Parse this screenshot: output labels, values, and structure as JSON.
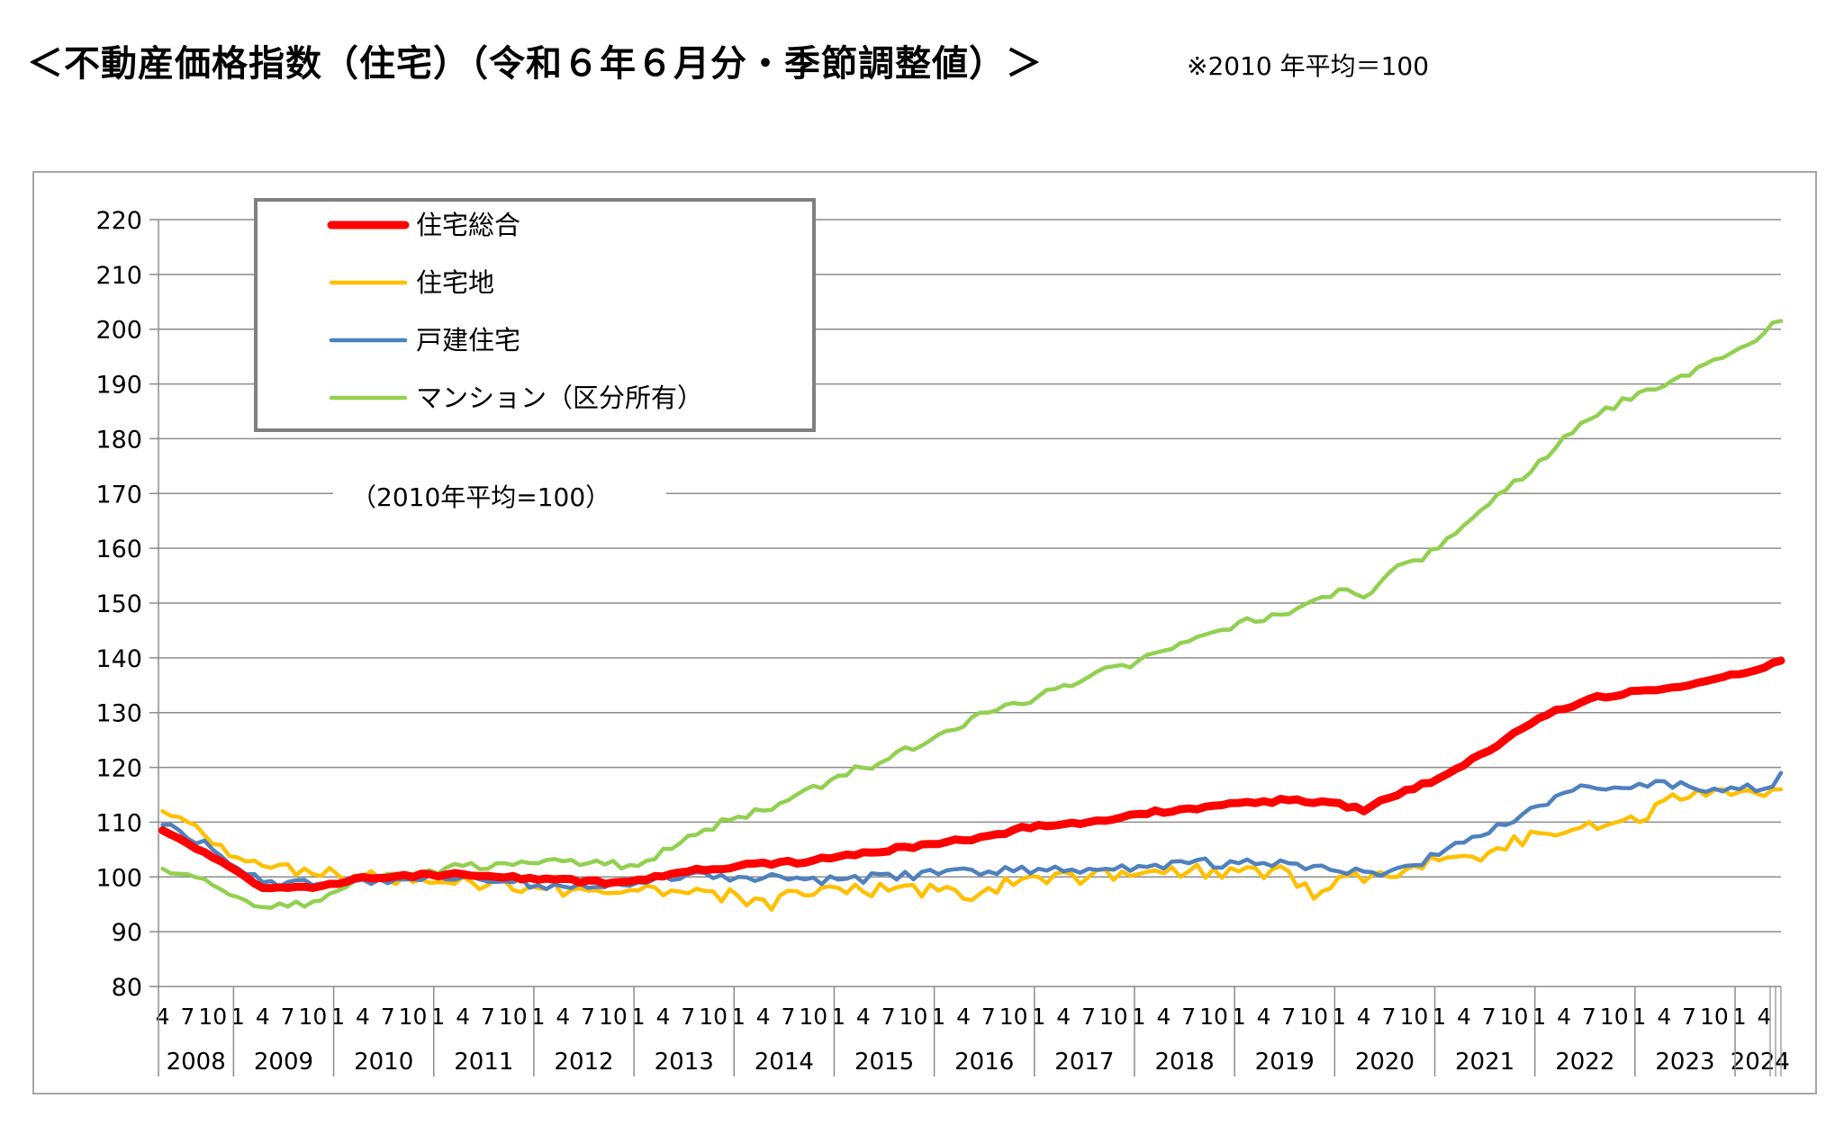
{
  "page": {
    "title": "＜不動産価格指数（住宅）（令和６年６月分・季節調整値）＞",
    "note": "※2010 年平均＝100"
  },
  "chart_data": {
    "type": "line",
    "base_note": "（2010年平均=100）",
    "ylim": [
      80,
      220
    ],
    "yticks": [
      80,
      90,
      100,
      110,
      120,
      130,
      140,
      150,
      160,
      170,
      180,
      190,
      200,
      210,
      220
    ],
    "grid": true,
    "legend_position": "top-left",
    "x_start": "2008-04",
    "x_end": "2024-06",
    "month_tick_labels": [
      "1",
      "4",
      "7",
      "10"
    ],
    "year_labels": [
      "2008",
      "2009",
      "2010",
      "2011",
      "2012",
      "2013",
      "2014",
      "2015",
      "2016",
      "2017",
      "2018",
      "2019",
      "2020",
      "2021",
      "2022",
      "2023",
      "2024"
    ],
    "series": [
      {
        "name": "住宅総合",
        "color": "#ff0000",
        "anchors": [
          [
            "2008-04",
            108.5
          ],
          [
            "2008-06",
            107
          ],
          [
            "2009-01",
            101
          ],
          [
            "2009-04",
            98
          ],
          [
            "2009-10",
            98
          ],
          [
            "2010-04",
            100
          ],
          [
            "2011-04",
            100.5
          ],
          [
            "2012-01",
            99.5
          ],
          [
            "2012-10",
            99
          ],
          [
            "2013-01",
            99.5
          ],
          [
            "2013-07",
            101
          ],
          [
            "2014-01",
            102
          ],
          [
            "2014-10",
            103
          ],
          [
            "2015-04",
            104.5
          ],
          [
            "2016-01",
            106
          ],
          [
            "2016-07",
            107.5
          ],
          [
            "2017-01",
            109.5
          ],
          [
            "2017-07",
            110
          ],
          [
            "2018-01",
            111.5
          ],
          [
            "2018-07",
            112.5
          ],
          [
            "2019-01",
            113.5
          ],
          [
            "2019-07",
            114
          ],
          [
            "2020-01",
            113.5
          ],
          [
            "2020-04",
            112
          ],
          [
            "2020-06",
            114
          ],
          [
            "2021-01",
            118
          ],
          [
            "2021-07",
            123
          ],
          [
            "2022-01",
            129
          ],
          [
            "2022-07",
            132.5
          ],
          [
            "2023-01",
            134
          ],
          [
            "2023-07",
            135
          ],
          [
            "2024-01",
            137
          ],
          [
            "2024-06",
            139.5
          ]
        ]
      },
      {
        "name": "住宅地",
        "color": "#ffc000",
        "anchors": [
          [
            "2008-04",
            112
          ],
          [
            "2008-07",
            110
          ],
          [
            "2008-10",
            106
          ],
          [
            "2009-04",
            102
          ],
          [
            "2009-10",
            100.5
          ],
          [
            "2010-04",
            100
          ],
          [
            "2011-01",
            99
          ],
          [
            "2011-07",
            98.5
          ],
          [
            "2012-01",
            98
          ],
          [
            "2012-07",
            97.5
          ],
          [
            "2013-01",
            97.5
          ],
          [
            "2013-07",
            97
          ],
          [
            "2014-01",
            96.5
          ],
          [
            "2014-05",
            94
          ],
          [
            "2014-07",
            97.5
          ],
          [
            "2015-01",
            98
          ],
          [
            "2015-07",
            97.5
          ],
          [
            "2016-01",
            97.5
          ],
          [
            "2016-04",
            96
          ],
          [
            "2016-07",
            98
          ],
          [
            "2017-01",
            100
          ],
          [
            "2017-07",
            100
          ],
          [
            "2018-01",
            100.5
          ],
          [
            "2018-07",
            101
          ],
          [
            "2019-01",
            101
          ],
          [
            "2019-07",
            101
          ],
          [
            "2019-10",
            96
          ],
          [
            "2020-01",
            100
          ],
          [
            "2020-07",
            100
          ],
          [
            "2021-01",
            103
          ],
          [
            "2021-07",
            104.5
          ],
          [
            "2022-01",
            108
          ],
          [
            "2022-07",
            110
          ],
          [
            "2023-01",
            110
          ],
          [
            "2023-04",
            114
          ],
          [
            "2023-07",
            114.5
          ],
          [
            "2024-01",
            115.5
          ],
          [
            "2024-06",
            116
          ]
        ]
      },
      {
        "name": "戸建住宅",
        "color": "#4f81bd",
        "anchors": [
          [
            "2008-04",
            109.5
          ],
          [
            "2008-10",
            105
          ],
          [
            "2009-04",
            99
          ],
          [
            "2009-10",
            98.5
          ],
          [
            "2010-04",
            99.5
          ],
          [
            "2011-04",
            100
          ],
          [
            "2012-01",
            98.5
          ],
          [
            "2012-07",
            98
          ],
          [
            "2013-01",
            99
          ],
          [
            "2013-07",
            100.5
          ],
          [
            "2014-01",
            100
          ],
          [
            "2014-07",
            99.5
          ],
          [
            "2015-01",
            99.5
          ],
          [
            "2016-01",
            100.5
          ],
          [
            "2016-07",
            101
          ],
          [
            "2017-01",
            101.5
          ],
          [
            "2017-07",
            101.5
          ],
          [
            "2018-01",
            102
          ],
          [
            "2018-07",
            102.5
          ],
          [
            "2019-01",
            102.5
          ],
          [
            "2019-07",
            102.5
          ],
          [
            "2020-01",
            101
          ],
          [
            "2020-07",
            101
          ],
          [
            "2021-01",
            104
          ],
          [
            "2021-07",
            108
          ],
          [
            "2022-01",
            113
          ],
          [
            "2022-07",
            116.5
          ],
          [
            "2023-01",
            117
          ],
          [
            "2023-07",
            116.5
          ],
          [
            "2024-01",
            116
          ],
          [
            "2024-05",
            116.5
          ],
          [
            "2024-06",
            119
          ]
        ]
      },
      {
        "name": "マンション（区分所有）",
        "color": "#92d050",
        "anchors": [
          [
            "2008-04",
            101.5
          ],
          [
            "2008-07",
            100.5
          ],
          [
            "2008-10",
            98.5
          ],
          [
            "2009-04",
            94.5
          ],
          [
            "2009-10",
            95.5
          ],
          [
            "2010-04",
            99.5
          ],
          [
            "2010-10",
            100.5
          ],
          [
            "2011-04",
            102
          ],
          [
            "2012-01",
            102.5
          ],
          [
            "2012-07",
            102.5
          ],
          [
            "2013-01",
            102
          ],
          [
            "2013-07",
            107.5
          ],
          [
            "2014-01",
            111
          ],
          [
            "2014-07",
            114
          ],
          [
            "2015-01",
            118.5
          ],
          [
            "2015-07",
            121.5
          ],
          [
            "2016-01",
            126
          ],
          [
            "2016-07",
            130
          ],
          [
            "2017-01",
            133
          ],
          [
            "2017-07",
            136.5
          ],
          [
            "2018-01",
            139.5
          ],
          [
            "2018-07",
            143
          ],
          [
            "2019-01",
            146.5
          ],
          [
            "2019-07",
            148
          ],
          [
            "2020-01",
            152.5
          ],
          [
            "2020-04",
            151
          ],
          [
            "2020-07",
            155.5
          ],
          [
            "2021-01",
            160
          ],
          [
            "2021-07",
            168
          ],
          [
            "2022-01",
            176
          ],
          [
            "2022-07",
            183.5
          ],
          [
            "2023-01",
            188.5
          ],
          [
            "2023-07",
            191.5
          ],
          [
            "2024-01",
            196.5
          ],
          [
            "2024-06",
            201.5
          ]
        ]
      }
    ]
  }
}
